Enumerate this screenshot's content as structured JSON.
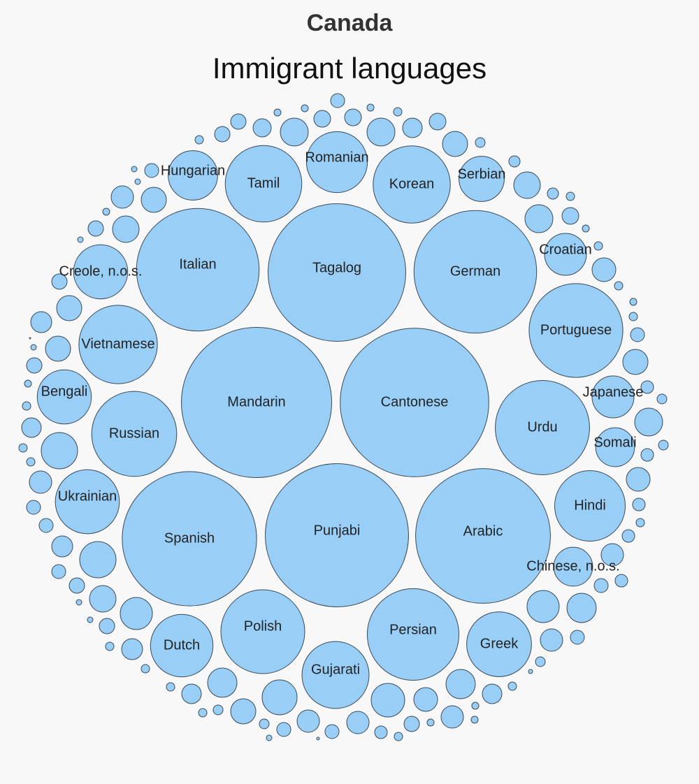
{
  "header": {
    "country": "Canada"
  },
  "chart_data": {
    "type": "bubble",
    "title": "Immigrant languages",
    "bubble_fill": "#99cff7",
    "bubble_stroke": "#3b4a57",
    "labeled": [
      {
        "label": "Mandarin",
        "value": 462
      },
      {
        "label": "Cantonese",
        "value": 452
      },
      {
        "label": "Punjabi",
        "value": 420
      },
      {
        "label": "Arabic",
        "value": 372
      },
      {
        "label": "Spanish",
        "value": 370
      },
      {
        "label": "Tagalog",
        "value": 388
      },
      {
        "label": "German",
        "value": 308
      },
      {
        "label": "Italian",
        "value": 308
      },
      {
        "label": "Portuguese",
        "value": 180
      },
      {
        "label": "Persian",
        "value": 172
      },
      {
        "label": "Urdu",
        "value": 182
      },
      {
        "label": "Polish",
        "value": 144
      },
      {
        "label": "Russian",
        "value": 148
      },
      {
        "label": "Korean",
        "value": 122
      },
      {
        "label": "Tamil",
        "value": 120
      },
      {
        "label": "Vietnamese",
        "value": 126
      },
      {
        "label": "Hindi",
        "value": 102
      },
      {
        "label": "Gujarati",
        "value": 92
      },
      {
        "label": "Greek",
        "value": 86
      },
      {
        "label": "Ukrainian",
        "value": 84
      },
      {
        "label": "Dutch",
        "value": 80
      },
      {
        "label": "Romanian",
        "value": 76
      },
      {
        "label": "Bengali",
        "value": 60
      },
      {
        "label": "Creole, n.o.s.",
        "value": 60
      },
      {
        "label": "Hungarian",
        "value": 50
      },
      {
        "label": "Serbian",
        "value": 42
      },
      {
        "label": "Croatian",
        "value": 36
      },
      {
        "label": "Japanese",
        "value": 36
      },
      {
        "label": "Somali",
        "value": 31
      },
      {
        "label": "Chinese, n.o.s.",
        "value": 31
      }
    ],
    "unlabeled_count": 140
  }
}
